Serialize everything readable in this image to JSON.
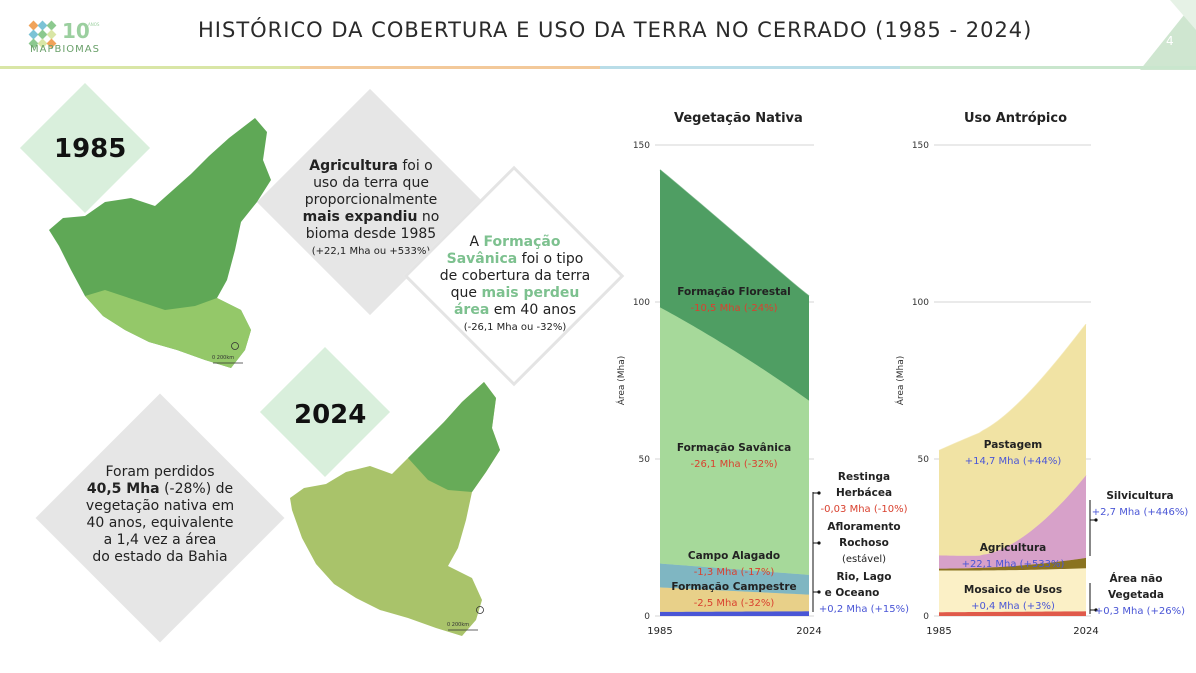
{
  "header": {
    "title": "HISTÓRICO DA COBERTURA E USO DA TERRA NO CERRADO (1985 - 2024)",
    "logo_text": "MAPBIOMAS",
    "logo_number": "10",
    "logo_suffix": "ANOS",
    "page_number": "4"
  },
  "left_panel": {
    "year_1985": "1985",
    "year_2024": "2024",
    "agri_text": {
      "l1_bold": "Agricultura",
      "l1_rest": " foi o",
      "l2": "uso da terra que",
      "l3": "proporcionalmente",
      "l4_bold": "mais expandiu",
      "l4_rest": " no",
      "l5": "bioma desde 1985",
      "l6": "(+22,1 Mha ou +533%)"
    },
    "sav_text": {
      "l1_pre": "A ",
      "l1_hl": "Formação",
      "l2_hl": "Savânica",
      "l2_rest": " foi o tipo",
      "l3": "de cobertura da terra",
      "l4_pre": "que ",
      "l4_hl": "mais perdeu",
      "l5_hl": "área",
      "l5_rest": " em 40 anos",
      "l6": "(-26,1 Mha ou -32%)"
    },
    "lost_text": {
      "l1": "Foram perdidos",
      "l2_bold": "40,5 Mha",
      "l2_rest": " (-28%) de",
      "l3": "vegetação nativa em",
      "l4": "40 anos, equivalente",
      "l5": "a 1,4 vez a área",
      "l6": "do estado da Bahia"
    },
    "scale_label": "0    200km",
    "highlight_color": "#7dc18f"
  },
  "chart_data": [
    {
      "type": "area",
      "title": "Vegetação Nativa",
      "ylabel": "Área (Mha)",
      "x_range": [
        1985,
        2024
      ],
      "ylim": [
        0,
        150
      ],
      "yticks": [
        0,
        50,
        100,
        150
      ],
      "x_ticks": [
        "1985",
        "2024"
      ],
      "stacked": true,
      "series": [
        {
          "name": "Rio, Lago e Oceano",
          "color": "#4a56d6",
          "start": 1.3,
          "end": 1.5,
          "change": "+0,2 Mha (+15%)"
        },
        {
          "name": "Formação Campestre",
          "color": "#e8d089",
          "start": 7.8,
          "end": 5.3,
          "change": "-2,5 Mha (-32%)"
        },
        {
          "name": "Campo Alagado",
          "color": "#7fb6c2",
          "start": 7.6,
          "end": 6.3,
          "change": "-1,3 Mha (-17%)"
        },
        {
          "name": "Formação Savânica",
          "color": "#a6d99a",
          "start": 81.6,
          "end": 55.5,
          "change": "-26,1 Mha (-32%)"
        },
        {
          "name": "Formação Florestal",
          "color": "#4f9e63",
          "start": 43.8,
          "end": 33.3,
          "change": "-10,5 Mha (-24%)"
        },
        {
          "name": "Restinga Herbácea",
          "change": "-0,03 Mha (-10%)"
        },
        {
          "name": "Afloramento Rochoso",
          "change": "(estável)"
        }
      ]
    },
    {
      "type": "area",
      "title": "Uso Antrópico",
      "ylabel": "Área (Mha)",
      "x_range": [
        1985,
        2024
      ],
      "ylim": [
        0,
        150
      ],
      "yticks": [
        0,
        50,
        100,
        150
      ],
      "x_ticks": [
        "1985",
        "2024"
      ],
      "stacked": true,
      "series": [
        {
          "name": "Área não Vegetada",
          "color": "#e05a4a",
          "start": 1.2,
          "end": 1.5,
          "change": "+0,3 Mha (+26%)"
        },
        {
          "name": "Mosaico de Usos",
          "color": "#fbf0c6",
          "start": 13.3,
          "end": 13.7,
          "change": "+0,4 Mha (+3%)"
        },
        {
          "name": "Silvicultura",
          "color": "#8a7320",
          "start": 0.6,
          "end": 3.3,
          "change": "+2,7 Mha (+446%)"
        },
        {
          "name": "Agricultura",
          "color": "#d7a1c9",
          "start": 4.2,
          "end": 26.3,
          "change": "+22,1 Mha (+533%)"
        },
        {
          "name": "Pastagem",
          "color": "#f1e3a4",
          "start": 33.4,
          "end": 48.1,
          "change": "+14,7 Mha (+44%)"
        }
      ]
    }
  ]
}
